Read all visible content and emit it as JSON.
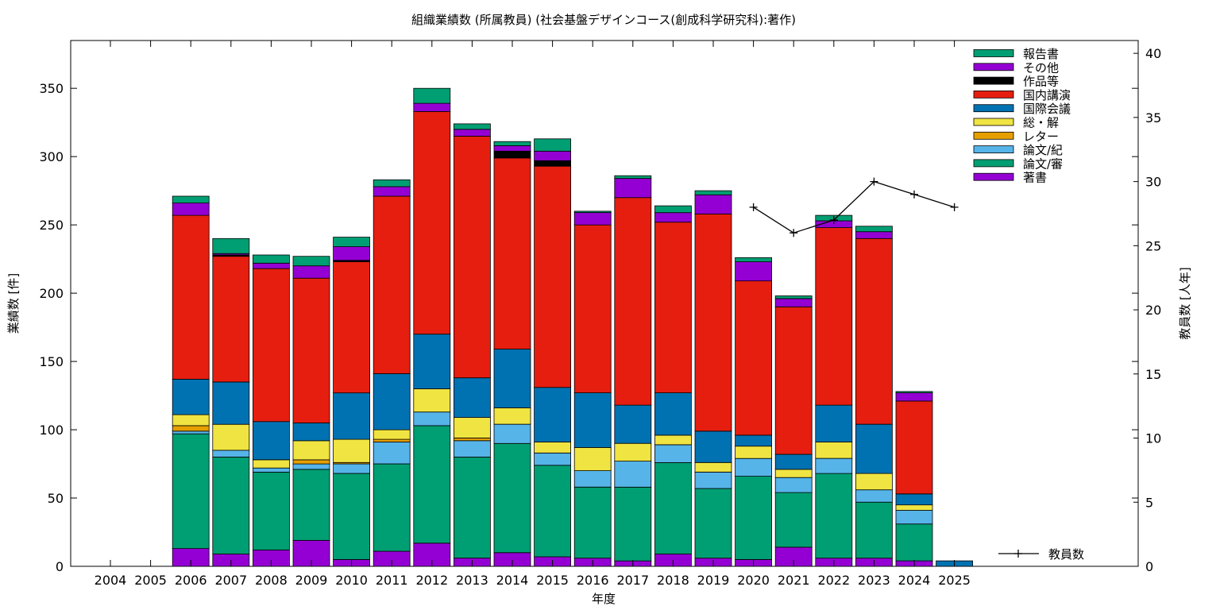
{
  "chart_data": {
    "type": "bar",
    "stacked": true,
    "title": "組織業績数 (所属教員) (社会基盤デザインコース(創成科学研究科):著作)",
    "xlabel": "年度",
    "ylabel": "業績数 [件]",
    "y2label": "教員数 [人年]",
    "ylim": [
      0,
      385
    ],
    "y2lim": [
      0,
      41
    ],
    "yticks": [
      0,
      50,
      100,
      150,
      200,
      250,
      300,
      350
    ],
    "y2ticks": [
      0,
      5,
      10,
      15,
      20,
      25,
      30,
      35,
      40
    ],
    "categories": [
      "2004",
      "2005",
      "2006",
      "2007",
      "2008",
      "2009",
      "2010",
      "2011",
      "2012",
      "2013",
      "2014",
      "2015",
      "2016",
      "2017",
      "2018",
      "2019",
      "2020",
      "2021",
      "2022",
      "2023",
      "2024",
      "2025"
    ],
    "legend_position": "top-right",
    "series": [
      {
        "name": "著書",
        "color": "#9400d3",
        "values": [
          0,
          0,
          13,
          9,
          12,
          19,
          5,
          11,
          17,
          6,
          10,
          7,
          6,
          4,
          9,
          6,
          5,
          14,
          6,
          6,
          4,
          0
        ]
      },
      {
        "name": "論文/審",
        "color": "#009e73",
        "values": [
          0,
          0,
          84,
          71,
          57,
          52,
          63,
          64,
          86,
          74,
          80,
          67,
          52,
          54,
          67,
          51,
          61,
          40,
          62,
          41,
          27,
          0
        ]
      },
      {
        "name": "論文/紀",
        "color": "#56b4e9",
        "values": [
          0,
          0,
          2,
          5,
          3,
          4,
          7,
          16,
          10,
          12,
          14,
          9,
          12,
          19,
          13,
          12,
          13,
          11,
          11,
          9,
          10,
          0
        ]
      },
      {
        "name": "レター",
        "color": "#e69f00",
        "values": [
          0,
          0,
          4,
          0,
          0,
          3,
          1,
          2,
          0,
          2,
          0,
          0,
          0,
          0,
          0,
          0,
          0,
          0,
          0,
          0,
          0,
          0
        ]
      },
      {
        "name": "総・解",
        "color": "#f0e442",
        "values": [
          0,
          0,
          8,
          19,
          6,
          14,
          17,
          7,
          17,
          15,
          12,
          8,
          17,
          13,
          7,
          7,
          9,
          6,
          12,
          12,
          4,
          0
        ]
      },
      {
        "name": "国際会議",
        "color": "#0072b2",
        "values": [
          0,
          0,
          26,
          31,
          28,
          13,
          34,
          41,
          40,
          29,
          43,
          40,
          40,
          28,
          31,
          23,
          8,
          11,
          27,
          36,
          8,
          4
        ]
      },
      {
        "name": "国内講演",
        "color": "#e51e10",
        "values": [
          0,
          0,
          120,
          92,
          112,
          106,
          96,
          130,
          163,
          177,
          140,
          162,
          123,
          152,
          125,
          159,
          113,
          108,
          130,
          136,
          68,
          0
        ]
      },
      {
        "name": "作品等",
        "color": "#000000",
        "values": [
          0,
          0,
          0,
          1,
          0,
          0,
          1,
          0,
          0,
          0,
          5,
          4,
          0,
          0,
          0,
          0,
          0,
          0,
          0,
          0,
          0,
          0
        ]
      },
      {
        "name": "その他",
        "color": "#9400d3",
        "values": [
          0,
          0,
          9,
          1,
          4,
          9,
          10,
          7,
          6,
          5,
          4,
          7,
          9,
          14,
          7,
          14,
          14,
          6,
          5,
          5,
          6,
          0
        ]
      },
      {
        "name": "報告書",
        "color": "#009e73",
        "values": [
          0,
          0,
          5,
          11,
          6,
          7,
          7,
          5,
          11,
          4,
          3,
          9,
          1,
          2,
          5,
          3,
          3,
          2,
          4,
          4,
          1,
          0
        ]
      }
    ],
    "line_series": {
      "name": "教員数",
      "color": "#000000",
      "axis": "y2",
      "points": [
        [
          "2020",
          28
        ],
        [
          "2021",
          26
        ],
        [
          "2022",
          27
        ],
        [
          "2023",
          30
        ],
        [
          "2024",
          29
        ],
        [
          "2025",
          28
        ]
      ]
    },
    "grid": false
  }
}
